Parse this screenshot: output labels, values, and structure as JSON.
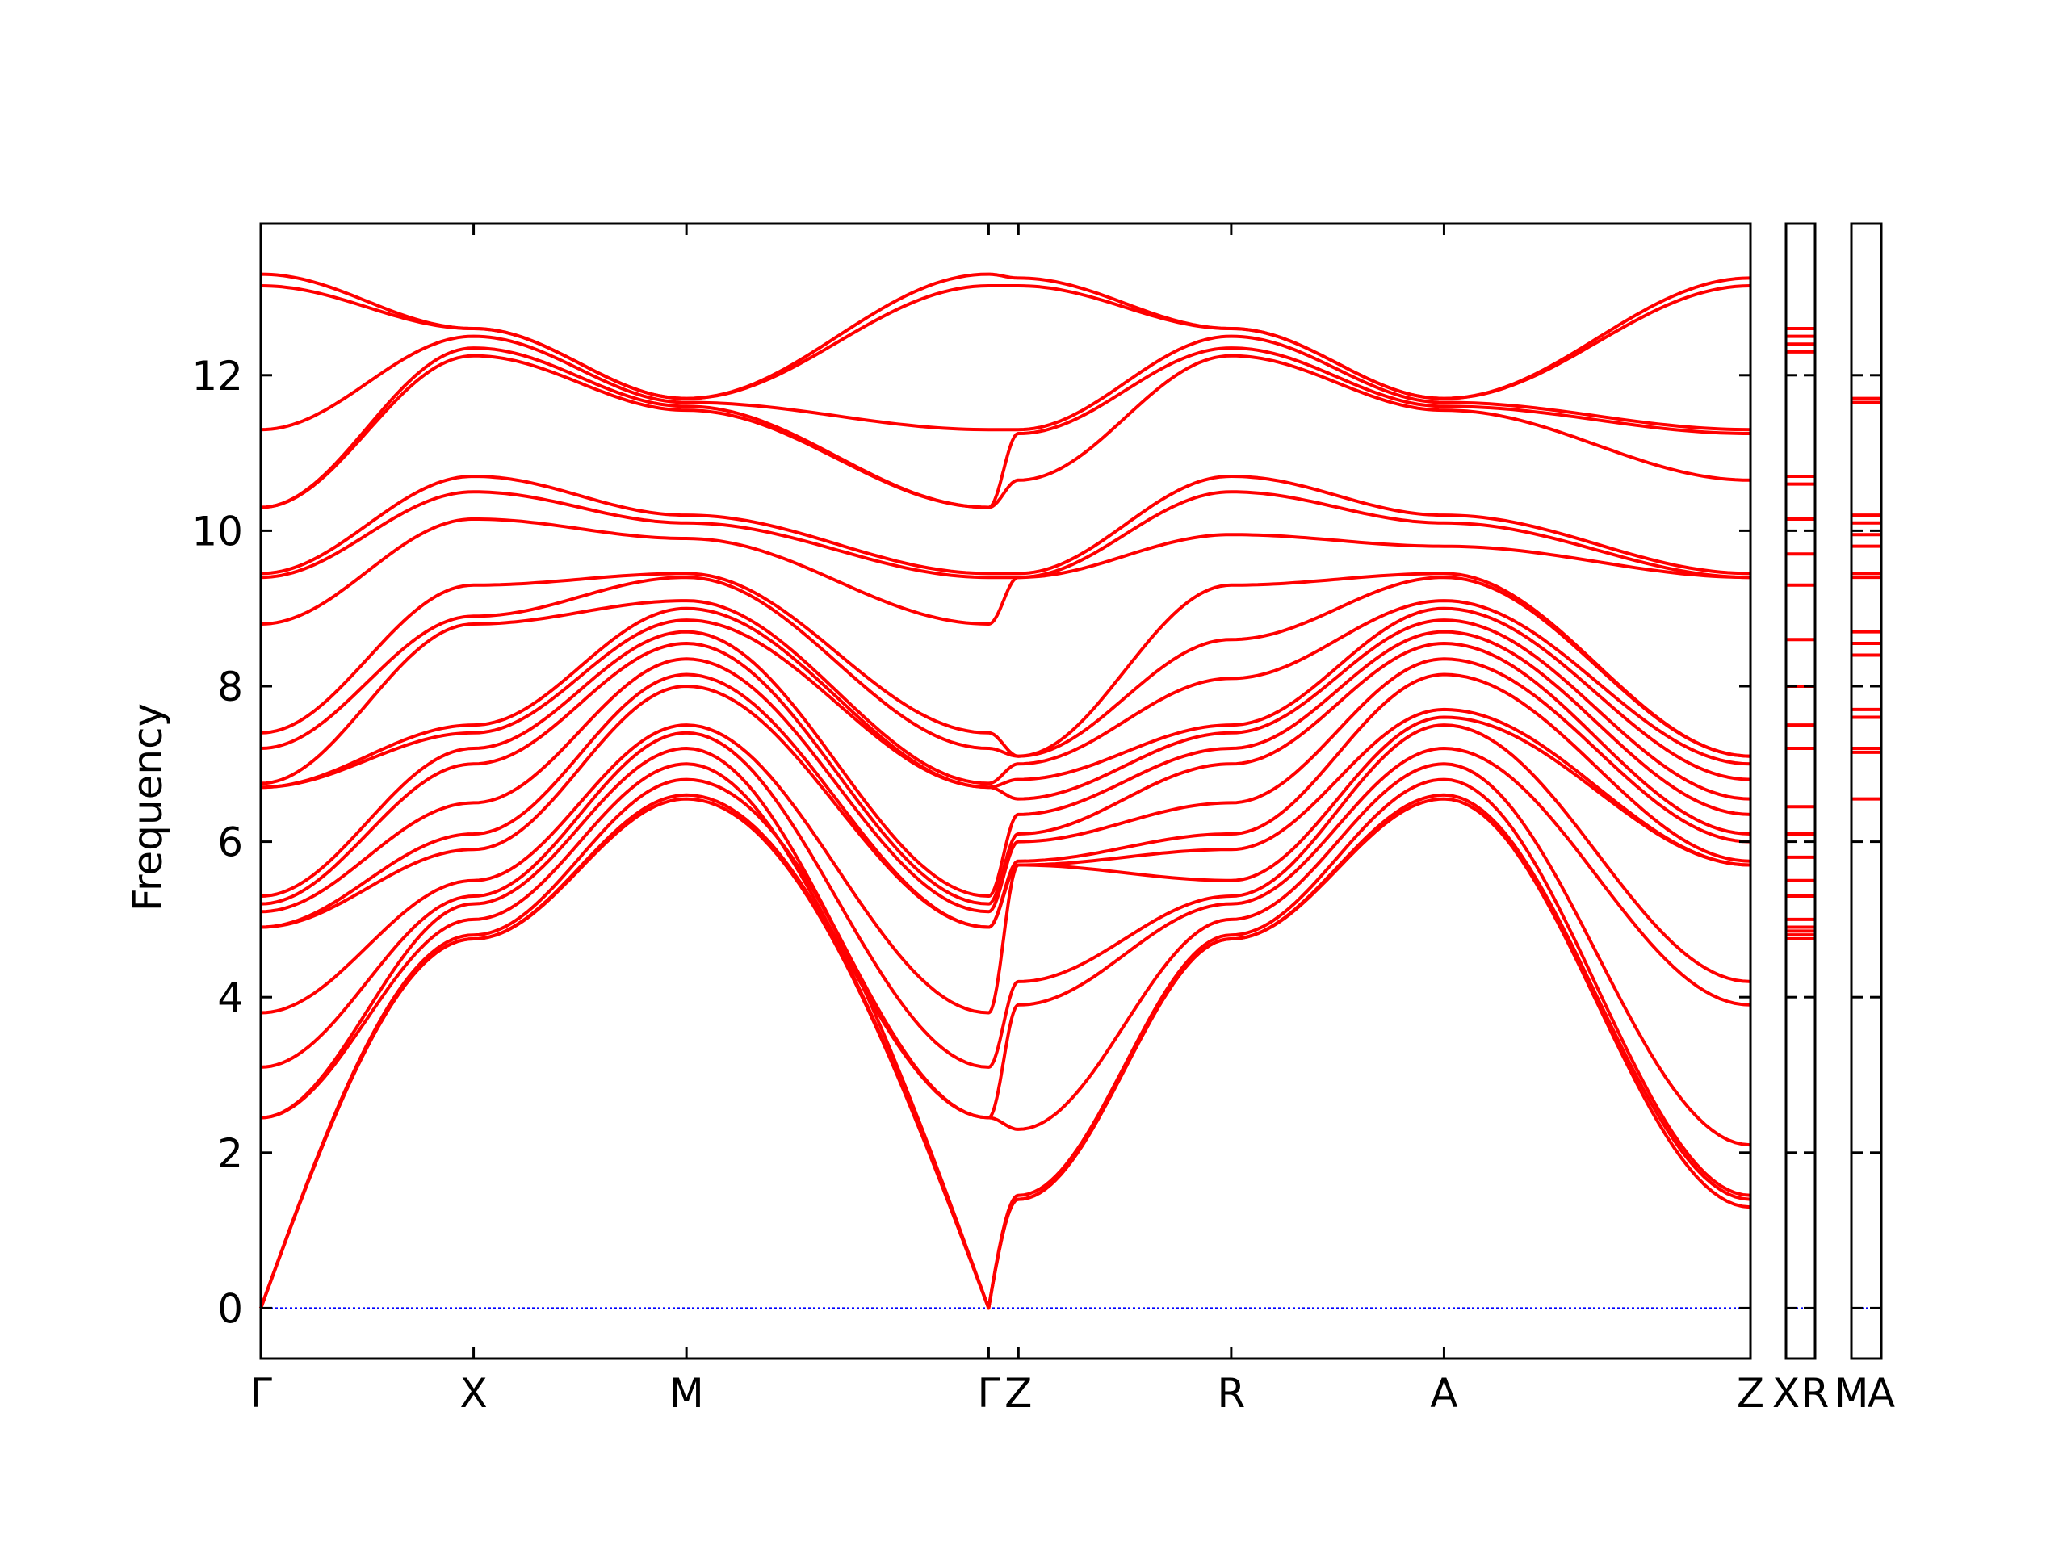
{
  "chart_data": {
    "type": "line",
    "title": "",
    "ylabel": "Frequency",
    "xlabel": "",
    "ylim": [
      -0.65,
      13.95
    ],
    "yticks": [
      0,
      2,
      4,
      6,
      8,
      10,
      12
    ],
    "grid": false,
    "legend": "none",
    "line_color": "#ff0000",
    "zero_line_color": "#0000ff",
    "segments": [
      {
        "name": "main",
        "labels": [
          "Γ",
          "X",
          "M",
          "Γ",
          "Z",
          "R",
          "A",
          "Z"
        ],
        "x": [
          0,
          1,
          2,
          3.42,
          3.56,
          4.56,
          5.56,
          7.0
        ],
        "anchors": {
          "Γ": [
            0,
            0,
            0,
            2.45,
            2.45,
            3.1,
            3.8,
            4.9,
            4.9,
            5.1,
            5.2,
            5.3,
            6.7,
            6.7,
            6.75,
            7.2,
            7.4,
            8.8,
            9.4,
            9.45,
            10.3,
            10.3,
            11.3,
            13.15,
            13.3
          ],
          "X": [
            4.75,
            4.75,
            4.8,
            5.0,
            5.2,
            5.3,
            5.5,
            5.9,
            6.1,
            6.5,
            7.0,
            7.2,
            7.4,
            7.5,
            8.8,
            8.9,
            9.3,
            10.15,
            10.5,
            10.7,
            12.25,
            12.35,
            12.5,
            12.6,
            12.6
          ],
          "M": [
            6.55,
            6.6,
            6.8,
            7.0,
            7.2,
            7.4,
            7.5,
            8.0,
            8.15,
            8.35,
            8.55,
            8.7,
            8.85,
            9.0,
            9.1,
            9.4,
            9.45,
            9.9,
            10.1,
            10.2,
            11.55,
            11.6,
            11.65,
            11.7,
            11.7
          ],
          "Γ2": [
            0,
            0,
            0,
            2.45,
            2.45,
            3.1,
            3.8,
            4.9,
            4.9,
            5.1,
            5.2,
            5.3,
            6.7,
            6.7,
            6.75,
            7.2,
            7.4,
            8.8,
            9.4,
            9.45,
            10.3,
            10.3,
            11.3,
            13.15,
            13.3
          ],
          "Z": [
            1.4,
            1.4,
            1.45,
            2.3,
            3.9,
            4.2,
            5.7,
            5.7,
            5.75,
            6.0,
            6.1,
            6.35,
            6.55,
            6.8,
            7.0,
            7.1,
            7.1,
            9.4,
            9.4,
            9.45,
            10.65,
            11.25,
            11.3,
            13.15,
            13.25
          ],
          "R": [
            4.75,
            4.75,
            4.8,
            5.0,
            5.2,
            5.3,
            5.5,
            5.9,
            6.1,
            6.5,
            7.0,
            7.2,
            7.4,
            7.5,
            8.1,
            8.6,
            9.3,
            9.95,
            10.5,
            10.7,
            12.25,
            12.35,
            12.5,
            12.6,
            12.6
          ],
          "A": [
            6.55,
            6.6,
            6.8,
            7.0,
            7.2,
            7.5,
            7.6,
            7.7,
            8.15,
            8.35,
            8.55,
            8.7,
            8.85,
            9.0,
            9.1,
            9.4,
            9.45,
            9.8,
            10.1,
            10.2,
            11.55,
            11.6,
            11.65,
            11.7,
            11.7
          ],
          "Z2": [
            1.3,
            1.4,
            1.45,
            2.1,
            3.9,
            4.2,
            5.7,
            5.7,
            5.75,
            6.0,
            6.1,
            6.35,
            6.55,
            6.8,
            7.0,
            7.1,
            7.1,
            9.4,
            9.4,
            9.45,
            10.65,
            11.25,
            11.3,
            13.15,
            13.25
          ]
        }
      },
      {
        "name": "XR",
        "labels": [
          "X",
          "R"
        ],
        "levels": [
          4.75,
          4.8,
          4.85,
          4.9,
          5.0,
          5.3,
          5.5,
          5.8,
          6.1,
          6.45,
          7.2,
          7.5,
          8.0,
          8.6,
          9.3,
          9.7,
          10.15,
          10.6,
          10.7,
          12.3,
          12.4,
          12.5,
          12.6,
          12.6,
          12.6
        ]
      },
      {
        "name": "MA",
        "labels": [
          "M",
          "A"
        ],
        "levels": [
          6.55,
          7.15,
          7.2,
          7.6,
          7.7,
          8.4,
          8.55,
          8.7,
          9.4,
          9.45,
          9.8,
          9.95,
          10.1,
          10.2,
          11.65,
          11.7
        ]
      }
    ]
  }
}
